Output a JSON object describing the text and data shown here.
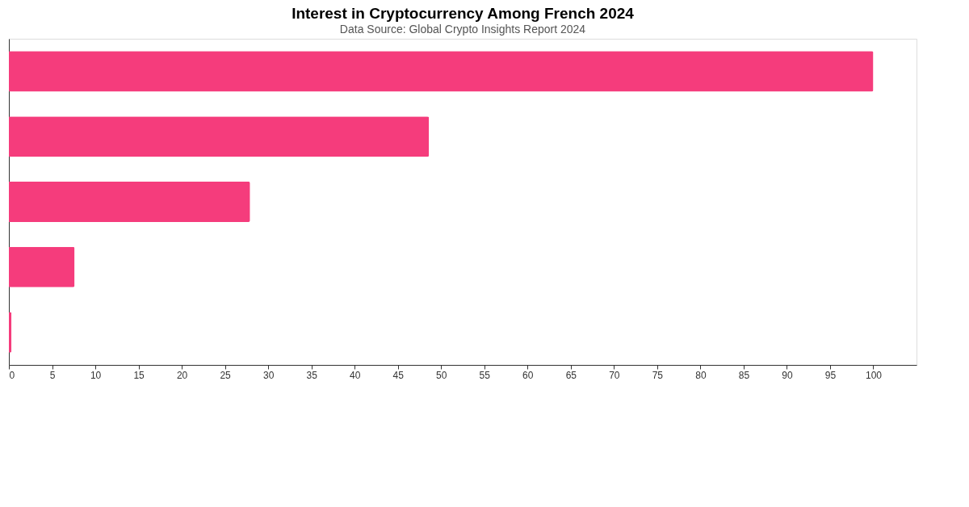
{
  "chart_data": {
    "type": "bar",
    "orientation": "horizontal",
    "title": "Interest in Cryptocurrency Among French 2024",
    "subtitle": "Data Source: Global Crypto Insights Report 2024",
    "categories": [
      null,
      null,
      null,
      null,
      null
    ],
    "series": [
      {
        "color": "#f53c7c",
        "values": [
          100,
          48.6,
          27.9,
          7.6,
          0.3
        ]
      }
    ],
    "xlim": [
      0,
      105
    ],
    "xticks": [
      0,
      5,
      10,
      15,
      20,
      25,
      30,
      35,
      40,
      45,
      50,
      55,
      60,
      65,
      70,
      75,
      80,
      85,
      90,
      95,
      100
    ],
    "grid": false,
    "legend": false,
    "tick_labels": "x"
  }
}
